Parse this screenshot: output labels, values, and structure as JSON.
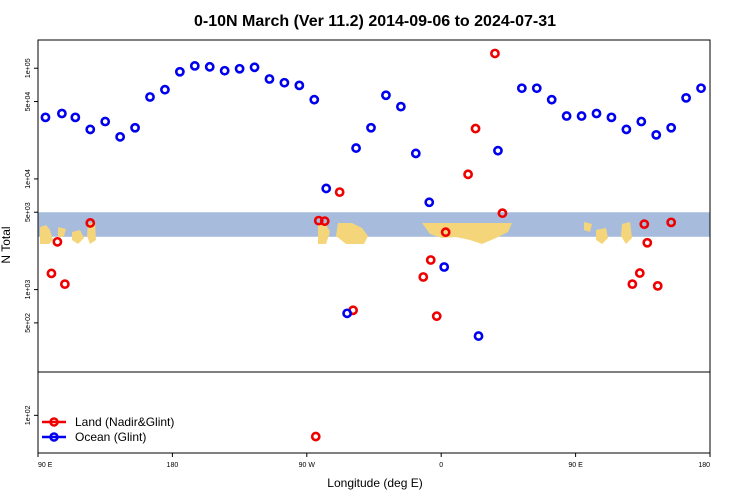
{
  "chart_data": {
    "type": "scatter",
    "title": "0-10N March (Ver 11.2)   2014-09-06 to 2024-07-31",
    "xlabel": "Longitude (deg E)",
    "ylabel": "N Total",
    "x_ticks": [
      {
        "value": 90,
        "label": "90 E"
      },
      {
        "value": 180,
        "label": "180"
      },
      {
        "value": 270,
        "label": "90 W"
      },
      {
        "value": 360,
        "label": "0"
      },
      {
        "value": 450,
        "label": "90 E"
      },
      {
        "value": 540,
        "label": "180"
      }
    ],
    "xlim": [
      90,
      540
    ],
    "y_scale": "log",
    "y_ticks_upper": [
      {
        "value": 100000,
        "label": "1e+05"
      },
      {
        "value": 50000,
        "label": "5e+04"
      },
      {
        "value": 10000,
        "label": "1e+04"
      },
      {
        "value": 5000,
        "label": "5e+03"
      },
      {
        "value": 1000,
        "label": "1e+03"
      },
      {
        "value": 500,
        "label": "5e+02"
      }
    ],
    "y_ticks_lower": [
      {
        "value": 100,
        "label": "1e+02"
      }
    ],
    "upper_ylim": [
      180,
      180000
    ],
    "lower_ylim": [
      60,
      180
    ],
    "band_range": [
      3000,
      5000
    ],
    "series": [
      {
        "name": "Land (Nadir&Glint)",
        "color": "#ee0000",
        "points": [
          [
            99,
            1400
          ],
          [
            103,
            2700
          ],
          [
            108,
            1120
          ],
          [
            125,
            4000
          ],
          [
            276,
            75
          ],
          [
            278,
            4200
          ],
          [
            282,
            4150
          ],
          [
            292,
            7600
          ],
          [
            301,
            650
          ],
          [
            348,
            1300
          ],
          [
            353,
            1850
          ],
          [
            357,
            575
          ],
          [
            363,
            3300
          ],
          [
            378,
            11000
          ],
          [
            383,
            28500
          ],
          [
            396,
            136000
          ],
          [
            401,
            4900
          ],
          [
            496,
            3900
          ],
          [
            488,
            1120
          ],
          [
            493,
            1410
          ],
          [
            498,
            2650
          ],
          [
            505,
            1080
          ],
          [
            514,
            4050
          ]
        ]
      },
      {
        "name": "Ocean (Glint)",
        "color": "#0000ee",
        "points": [
          [
            95,
            36000
          ],
          [
            106,
            39000
          ],
          [
            115,
            36000
          ],
          [
            125,
            28000
          ],
          [
            135,
            33000
          ],
          [
            145,
            24000
          ],
          [
            155,
            29000
          ],
          [
            165,
            55000
          ],
          [
            175,
            64000
          ],
          [
            185,
            93000
          ],
          [
            195,
            105000
          ],
          [
            205,
            103000
          ],
          [
            215,
            95000
          ],
          [
            225,
            99000
          ],
          [
            235,
            102000
          ],
          [
            245,
            80000
          ],
          [
            255,
            74000
          ],
          [
            265,
            70000
          ],
          [
            275,
            52000
          ],
          [
            283,
            8200
          ],
          [
            297,
            610
          ],
          [
            303,
            19000
          ],
          [
            313,
            29000
          ],
          [
            323,
            57000
          ],
          [
            333,
            45000
          ],
          [
            343,
            17000
          ],
          [
            352,
            6150
          ],
          [
            362,
            1600
          ],
          [
            385,
            380
          ],
          [
            398,
            18000
          ],
          [
            414,
            66000
          ],
          [
            424,
            66000
          ],
          [
            434,
            52000
          ],
          [
            444,
            37000
          ],
          [
            454,
            37000
          ],
          [
            464,
            39000
          ],
          [
            474,
            36000
          ],
          [
            484,
            28000
          ],
          [
            494,
            33000
          ],
          [
            504,
            25000
          ],
          [
            514,
            29000
          ],
          [
            524,
            54000
          ],
          [
            534,
            66000
          ]
        ]
      }
    ]
  }
}
